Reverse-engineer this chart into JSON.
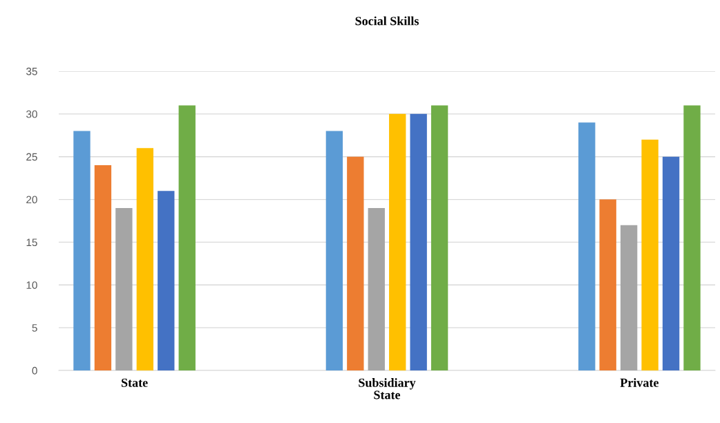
{
  "chart_data": {
    "type": "bar",
    "title": "Social Skills",
    "categories": [
      "State",
      "Subsidiary\nState",
      "Private"
    ],
    "series": [
      {
        "color": "#5b9bd5",
        "values": [
          28,
          28,
          29
        ]
      },
      {
        "color": "#ed7d31",
        "values": [
          24,
          25,
          20
        ]
      },
      {
        "color": "#a5a5a5",
        "values": [
          19,
          19,
          17
        ]
      },
      {
        "color": "#ffc000",
        "values": [
          26,
          30,
          27
        ]
      },
      {
        "color": "#4472c4",
        "values": [
          21,
          30,
          25
        ]
      },
      {
        "color": "#70ad47",
        "values": [
          31,
          31,
          31
        ]
      }
    ],
    "ylim": [
      0,
      35
    ],
    "yticks": [
      0,
      5,
      10,
      15,
      20,
      25,
      30,
      35
    ],
    "grid": "y",
    "legend": false
  }
}
